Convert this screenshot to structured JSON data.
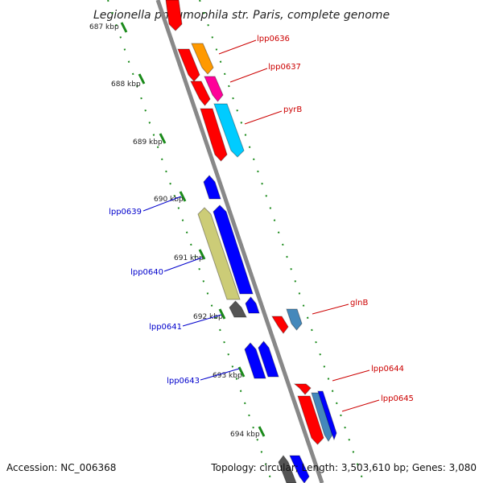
{
  "title": "Legionella pneumophila str. Paris, complete genome",
  "footer": {
    "accession": "Accession: NC_006368",
    "summary": "Topology: circular; Length: 3,503,610 bp; Genes: 3,080"
  },
  "colors": {
    "backbone": "#888888",
    "tick": "#1a8a1a",
    "forward_label": "#cc0000",
    "reverse_label": "#0000cc"
  },
  "ticks": [
    {
      "kb": 687,
      "label": "687 kbp"
    },
    {
      "kb": 688,
      "label": "688 kbp"
    },
    {
      "kb": 689,
      "label": "689 kbp"
    },
    {
      "kb": 690,
      "label": "690 kbp"
    },
    {
      "kb": 691,
      "label": "691 kbp"
    },
    {
      "kb": 692,
      "label": "692 kbp"
    },
    {
      "kb": 693,
      "label": "693 kbp"
    },
    {
      "kb": 694,
      "label": "694 kbp"
    }
  ],
  "labels": [
    {
      "text": "lpp0636",
      "strand": "+"
    },
    {
      "text": "lpp0637",
      "strand": "+"
    },
    {
      "text": "pyrB",
      "strand": "+"
    },
    {
      "text": "lpp0639",
      "strand": "-"
    },
    {
      "text": "lpp0640",
      "strand": "-"
    },
    {
      "text": "glnB",
      "strand": "+"
    },
    {
      "text": "lpp0641",
      "strand": "-"
    },
    {
      "text": "lpp0643",
      "strand": "-"
    },
    {
      "text": "lpp0644",
      "strand": "+"
    },
    {
      "text": "lpp0645",
      "strand": "+"
    }
  ],
  "features": [
    {
      "color": "#ff0000"
    },
    {
      "color": "#ff9900"
    },
    {
      "color": "#ff0099"
    },
    {
      "color": "#00ccff"
    },
    {
      "color": "#0000ff"
    },
    {
      "color": "#cccc77"
    },
    {
      "color": "#555555"
    },
    {
      "color": "#4488bb"
    }
  ]
}
